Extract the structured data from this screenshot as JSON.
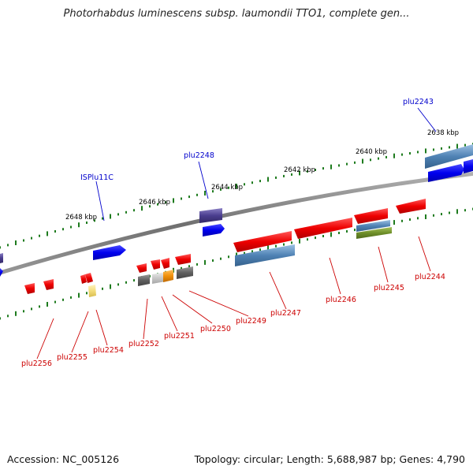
{
  "title": "Photorhabdus luminescens subsp. laumondii TTO1, complete gen...",
  "footer": {
    "accession_text": "Accession: NC_005126",
    "summary_text": "Topology: circular; Length: 5,688,987 bp; Genes: 4,790"
  },
  "colors": {
    "backbone": "#808080",
    "scale_tick": "#1e7b1e",
    "forward_gene": "#0000ee",
    "reverse_gene": "#ee0000",
    "forward_label": "#0000cc",
    "reverse_label": "#cc0000",
    "cds_steel": "#4f82b4",
    "misc_purple": "#4a3d8f",
    "misc_grey": "#5f5f5f",
    "misc_orange": "#f0900a",
    "misc_olive": "#6f8f2a",
    "misc_yellow": "#f3dc7a"
  },
  "scale_labels": [
    {
      "kbp": 2638,
      "text": "2638 kbp"
    },
    {
      "kbp": 2640,
      "text": "2640 kbp"
    },
    {
      "kbp": 2642,
      "text": "2642 kbp"
    },
    {
      "kbp": 2644,
      "text": "2644 kbp"
    },
    {
      "kbp": 2646,
      "text": "2646 kbp"
    },
    {
      "kbp": 2648,
      "text": "2648 kbp"
    }
  ],
  "gene_labels": [
    {
      "name": "plu2243",
      "strand": "forward"
    },
    {
      "name": "plu2248",
      "strand": "forward"
    },
    {
      "name": "ISPlu11C",
      "strand": "forward"
    },
    {
      "name": "plu2244",
      "strand": "reverse"
    },
    {
      "name": "plu2245",
      "strand": "reverse"
    },
    {
      "name": "plu2246",
      "strand": "reverse"
    },
    {
      "name": "plu2247",
      "strand": "reverse"
    },
    {
      "name": "plu2249",
      "strand": "reverse"
    },
    {
      "name": "plu2250",
      "strand": "reverse"
    },
    {
      "name": "plu2251",
      "strand": "reverse"
    },
    {
      "name": "plu2252",
      "strand": "reverse"
    },
    {
      "name": "plu2254",
      "strand": "reverse"
    },
    {
      "name": "plu2255",
      "strand": "reverse"
    },
    {
      "name": "plu2256",
      "strand": "reverse"
    }
  ]
}
